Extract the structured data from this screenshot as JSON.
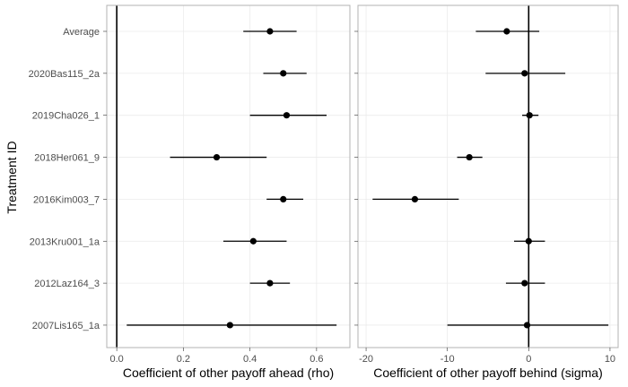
{
  "chart_data": {
    "type": "forest-plot",
    "ylabel": "Treatment ID",
    "categories": [
      "Average",
      "2020Bas115_2a",
      "2019Cha026_1",
      "2018Her061_9",
      "2016Kim003_7",
      "2013Kru001_1a",
      "2012Laz164_3",
      "2007Lis165_1a"
    ],
    "grid": true,
    "panels": [
      {
        "xlabel": "Coefficient of other payoff ahead (rho)",
        "xlim": [
          -0.03,
          0.7
        ],
        "xticks": [
          0.0,
          0.2,
          0.4,
          0.6
        ],
        "xtick_labels": [
          "0.0",
          "0.2",
          "0.4",
          "0.6"
        ],
        "reference_line": 0,
        "estimates": [
          0.46,
          0.5,
          0.51,
          0.3,
          0.5,
          0.41,
          0.46,
          0.34
        ],
        "lower": [
          0.38,
          0.44,
          0.4,
          0.16,
          0.45,
          0.32,
          0.4,
          0.03
        ],
        "upper": [
          0.54,
          0.57,
          0.63,
          0.45,
          0.56,
          0.51,
          0.52,
          0.66
        ]
      },
      {
        "xlabel": "Coefficient of other payoff behind (sigma)",
        "xlim": [
          -21,
          11
        ],
        "xticks": [
          -20,
          -10,
          0,
          10
        ],
        "xtick_labels": [
          "-20",
          "-10",
          "0",
          "10"
        ],
        "reference_line": 0,
        "estimates": [
          -2.7,
          -0.5,
          0.1,
          -7.3,
          -14.0,
          0.0,
          -0.5,
          -0.2
        ],
        "lower": [
          -6.5,
          -5.3,
          -0.8,
          -8.8,
          -19.2,
          -1.8,
          -2.8,
          -10.0
        ],
        "upper": [
          1.3,
          4.5,
          1.2,
          -5.7,
          -8.6,
          2.0,
          2.0,
          9.8
        ]
      }
    ]
  }
}
